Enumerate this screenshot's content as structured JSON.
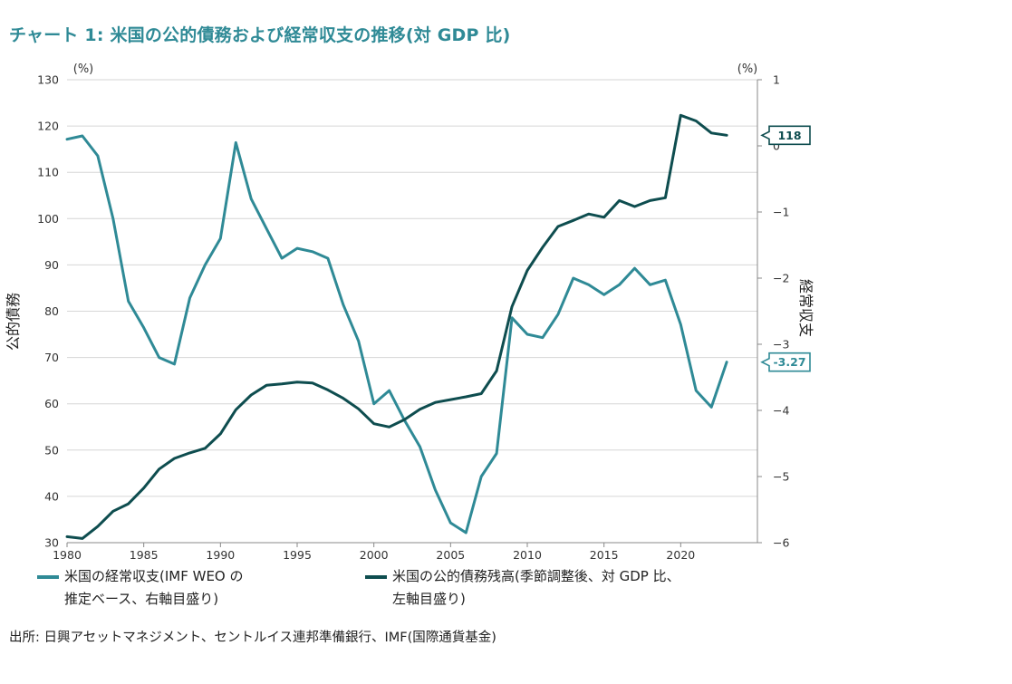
{
  "title": "チャート 1: 米国の公的債務および経常収支の推移(対 GDP 比)",
  "source": "出所: 日興アセットマネジメント、セントルイス連邦準備銀行、IMF(国際通貨基金)",
  "colors": {
    "current_account": "#2f8a96",
    "public_debt": "#0e4d4f",
    "title": "#2f8a96"
  },
  "chart_data": {
    "type": "line",
    "left_axis": {
      "label": "公的債務",
      "unit": "(%)",
      "min": 30,
      "max": 130,
      "ticks": [
        "30",
        "40",
        "50",
        "60",
        "70",
        "80",
        "90",
        "100",
        "110",
        "120",
        "130"
      ]
    },
    "right_axis": {
      "label": "経常収支",
      "unit": "(%)",
      "min": -6,
      "max": 1,
      "ticks": [
        "−6",
        "−5",
        "−4",
        "−3",
        "−2",
        "−1",
        "0",
        "1"
      ]
    },
    "x_axis": {
      "min": 1980,
      "max": 2025,
      "ticks": [
        "1980",
        "1985",
        "1990",
        "1995",
        "2000",
        "2005",
        "2010",
        "2015",
        "2020"
      ]
    },
    "grid": "horizontal",
    "series": [
      {
        "key": "current_account",
        "name": "米国の経常収支(IMF WEO の推定ベース、右軸目盛り)",
        "legend_lines": [
          "米国の経常収支(IMF WEO の",
          "推定ベース、右軸目盛り)"
        ],
        "axis": "right",
        "end_label": "-3.27",
        "x": [
          1980,
          1981,
          1982,
          1983,
          1984,
          1985,
          1986,
          1987,
          1988,
          1989,
          1990,
          1991,
          1992,
          1993,
          1994,
          1995,
          1996,
          1997,
          1998,
          1999,
          2000,
          2001,
          2002,
          2003,
          2004,
          2005,
          2006,
          2007,
          2008,
          2009,
          2010,
          2011,
          2012,
          2013,
          2014,
          2015,
          2016,
          2017,
          2018,
          2019,
          2020,
          2021,
          2022,
          2023
        ],
        "values": [
          0.1,
          0.15,
          -0.15,
          -1.1,
          -2.35,
          -2.75,
          -3.2,
          -3.3,
          -2.3,
          -1.8,
          -1.4,
          0.05,
          -0.8,
          -1.25,
          -1.7,
          -1.55,
          -1.6,
          -1.7,
          -2.4,
          -2.95,
          -3.9,
          -3.7,
          -4.15,
          -4.55,
          -5.2,
          -5.7,
          -5.85,
          -5.0,
          -4.65,
          -2.6,
          -2.85,
          -2.9,
          -2.55,
          -2.0,
          -2.1,
          -2.25,
          -2.1,
          -1.85,
          -2.1,
          -2.03,
          -2.7,
          -3.7,
          -3.95,
          -3.27
        ]
      },
      {
        "key": "public_debt",
        "name": "米国の公的債務残高(季節調整後、対 GDP 比、左軸目盛り)",
        "legend_lines": [
          "米国の公的債務残高(季節調整後、対 GDP 比、",
          "左軸目盛り)"
        ],
        "axis": "left",
        "end_label": "118",
        "x": [
          1980,
          1981,
          1982,
          1983,
          1984,
          1985,
          1986,
          1987,
          1988,
          1989,
          1990,
          1991,
          1992,
          1993,
          1994,
          1995,
          1996,
          1997,
          1998,
          1999,
          2000,
          2001,
          2002,
          2003,
          2004,
          2005,
          2006,
          2007,
          2008,
          2009,
          2010,
          2011,
          2012,
          2013,
          2014,
          2015,
          2016,
          2017,
          2018,
          2019,
          2020,
          2021,
          2022,
          2023
        ],
        "values": [
          31.3,
          30.9,
          33.5,
          36.8,
          38.4,
          41.8,
          45.9,
          48.2,
          49.4,
          50.4,
          53.5,
          58.7,
          61.9,
          64.0,
          64.3,
          64.7,
          64.5,
          63.0,
          61.2,
          58.9,
          55.7,
          55.0,
          56.6,
          58.8,
          60.3,
          60.9,
          61.5,
          62.2,
          67.1,
          81.0,
          88.8,
          93.8,
          98.3,
          99.6,
          101.0,
          100.3,
          103.9,
          102.6,
          103.9,
          104.5,
          122.3,
          121.1,
          118.5,
          118.0
        ]
      }
    ]
  }
}
